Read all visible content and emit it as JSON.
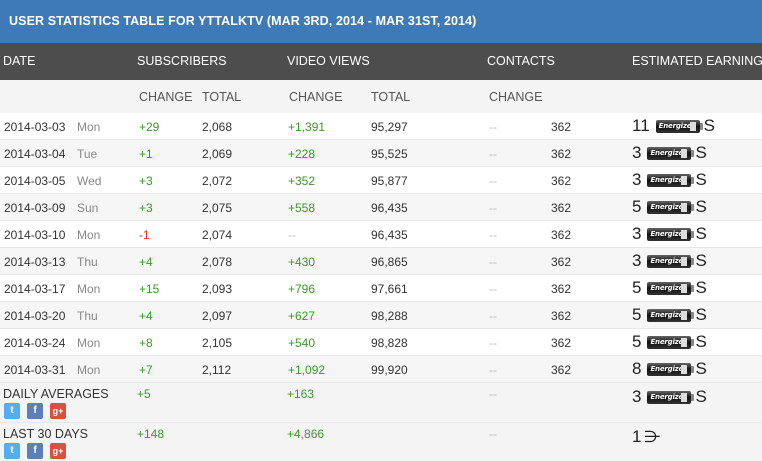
{
  "title": "USER STATISTICS TABLE FOR YTTALKTV (MAR 3RD, 2014 - MAR 31ST, 2014)",
  "headers": {
    "date": "DATE",
    "subscribers": "SUBSCRIBERS",
    "video_views": "VIDEO VIEWS",
    "contacts": "CONTACTS",
    "estimated_earnings": "ESTIMATED EARNINGS"
  },
  "subheaders": {
    "sub_change": "CHANGE",
    "sub_total": "TOTAL",
    "vv_change": "CHANGE",
    "vv_total": "TOTAL",
    "ct_change": "CHANGE"
  },
  "battery_label": "Energizer",
  "earn_suffix": "S",
  "rows": [
    {
      "date": "2014-03-03",
      "day": "Mon",
      "sub_change": "+29",
      "sub_total": "2,068",
      "vv_change": "+1,391",
      "vv_total": "95,297",
      "ct_change": "--",
      "ct_total": "362",
      "earn": "11"
    },
    {
      "date": "2014-03-04",
      "day": "Tue",
      "sub_change": "+1",
      "sub_total": "2,069",
      "vv_change": "+228",
      "vv_total": "95,525",
      "ct_change": "--",
      "ct_total": "362",
      "earn": "3"
    },
    {
      "date": "2014-03-05",
      "day": "Wed",
      "sub_change": "+3",
      "sub_total": "2,072",
      "vv_change": "+352",
      "vv_total": "95,877",
      "ct_change": "--",
      "ct_total": "362",
      "earn": "3"
    },
    {
      "date": "2014-03-09",
      "day": "Sun",
      "sub_change": "+3",
      "sub_total": "2,075",
      "vv_change": "+558",
      "vv_total": "96,435",
      "ct_change": "--",
      "ct_total": "362",
      "earn": "5"
    },
    {
      "date": "2014-03-10",
      "day": "Mon",
      "sub_change": "-1",
      "sub_total": "2,074",
      "vv_change": "--",
      "vv_total": "96,435",
      "ct_change": "--",
      "ct_total": "362",
      "earn": "3"
    },
    {
      "date": "2014-03-13",
      "day": "Thu",
      "sub_change": "+4",
      "sub_total": "2,078",
      "vv_change": "+430",
      "vv_total": "96,865",
      "ct_change": "--",
      "ct_total": "362",
      "earn": "3"
    },
    {
      "date": "2014-03-17",
      "day": "Mon",
      "sub_change": "+15",
      "sub_total": "2,093",
      "vv_change": "+796",
      "vv_total": "97,661",
      "ct_change": "--",
      "ct_total": "362",
      "earn": "5"
    },
    {
      "date": "2014-03-20",
      "day": "Thu",
      "sub_change": "+4",
      "sub_total": "2,097",
      "vv_change": "+627",
      "vv_total": "98,288",
      "ct_change": "--",
      "ct_total": "362",
      "earn": "5"
    },
    {
      "date": "2014-03-24",
      "day": "Mon",
      "sub_change": "+8",
      "sub_total": "2,105",
      "vv_change": "+540",
      "vv_total": "98,828",
      "ct_change": "--",
      "ct_total": "362",
      "earn": "5"
    },
    {
      "date": "2014-03-31",
      "day": "Mon",
      "sub_change": "+7",
      "sub_total": "2,112",
      "vv_change": "+1,092",
      "vv_total": "99,920",
      "ct_change": "--",
      "ct_total": "362",
      "earn": "8"
    }
  ],
  "daily_averages": {
    "label": "DAILY AVERAGES",
    "sub_change": "+5",
    "vv_change": "+163",
    "ct_change": "--",
    "earn": "3"
  },
  "last_30_days": {
    "label": "LAST 30 DAYS",
    "sub_change": "+148",
    "vv_change": "+4,866",
    "ct_change": "--",
    "earn": "1",
    "earn_symbol": "⋺"
  },
  "social": {
    "twitter": "t",
    "facebook": "f",
    "gplus": "g+"
  },
  "colors": {
    "title_bg": "#3e7ab8",
    "header_bg": "#4d4d4d",
    "positive": "#3a9a25",
    "negative": "#d23020"
  }
}
